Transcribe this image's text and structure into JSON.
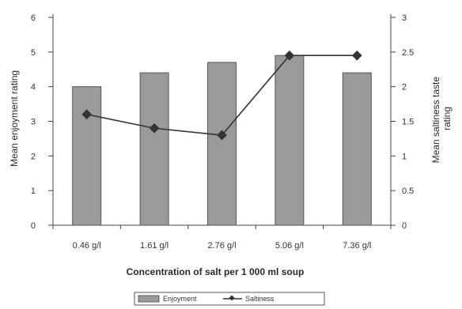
{
  "chart_data": {
    "type": "bar+line",
    "categories": [
      "0.46 g/l",
      "1.61 g/l",
      "2.76 g/l",
      "5.06 g/l",
      "7.36 g/l"
    ],
    "series": [
      {
        "name": "Enjoyment",
        "type": "bar",
        "axis": "left",
        "values": [
          4.0,
          4.4,
          4.7,
          4.9,
          4.4
        ]
      },
      {
        "name": "Saltiness",
        "type": "line",
        "axis": "right",
        "values": [
          1.6,
          1.4,
          1.3,
          2.45,
          2.45
        ]
      }
    ],
    "xlabel": "Concentration of salt per 1 000 ml soup",
    "ylabel_left": "Mean enjoyment rating",
    "ylabel_right": [
      "Mean saltiness taste",
      "rating"
    ],
    "ylim_left": [
      0,
      6
    ],
    "ylim_right": [
      0,
      3
    ],
    "yticks_left": [
      "0",
      "1",
      "2",
      "3",
      "4",
      "5",
      "6"
    ],
    "yticks_right": [
      "0",
      "0.5",
      "1",
      "1.5",
      "2",
      "2.5",
      "3"
    ],
    "legend_position": "bottom",
    "grid": false,
    "bar_color": "#9a9a9a",
    "line_color": "#333333"
  }
}
